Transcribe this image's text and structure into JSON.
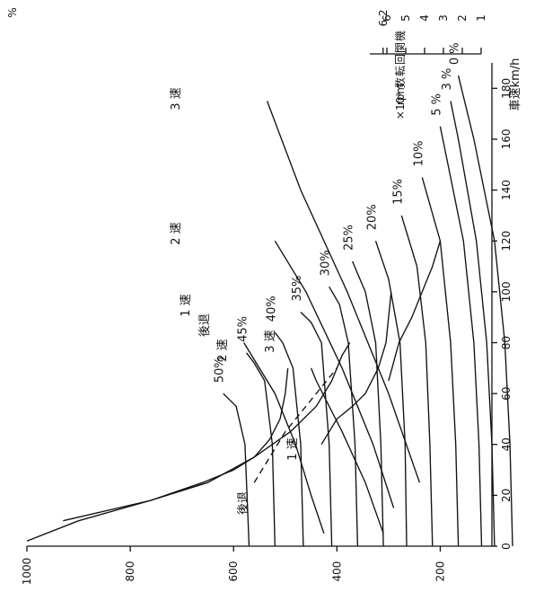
{
  "chart_data": {
    "type": "line",
    "title": "",
    "xlabel": "車速km/h",
    "ylabel": "",
    "ylabel_unit_top": "%",
    "rpm_axis_label": [
      "機",
      "関",
      "回",
      "転",
      "数",
      "rpm",
      "×10³"
    ],
    "xlim": [
      0,
      190
    ],
    "ylim": [
      100,
      1000
    ],
    "x_ticks": [
      0,
      20,
      40,
      60,
      80,
      100,
      120,
      140,
      160,
      180
    ],
    "y_ticks": [
      200,
      400,
      600,
      800,
      1000
    ],
    "rpm_ticks": [
      "1",
      "2",
      "3",
      "4",
      "5",
      "6",
      "6.2"
    ],
    "rpm_values": [
      1,
      2,
      3,
      4,
      5,
      6,
      6.2
    ],
    "gradient_labels": [
      "0 %",
      "3 %",
      "5 %",
      "10%",
      "15%",
      "20%",
      "25%",
      "30%",
      "35%",
      "40%",
      "45%",
      "50%"
    ],
    "gradient_series": [
      {
        "name": "0 %",
        "points": [
          [
            0,
            60
          ],
          [
            40,
            65
          ],
          [
            80,
            75
          ],
          [
            120,
            95
          ],
          [
            160,
            135
          ],
          [
            185,
            165
          ]
        ]
      },
      {
        "name": "3 %",
        "points": [
          [
            0,
            95
          ],
          [
            40,
            100
          ],
          [
            80,
            110
          ],
          [
            120,
            130
          ],
          [
            160,
            165
          ],
          [
            175,
            180
          ]
        ]
      },
      {
        "name": "5 %",
        "points": [
          [
            0,
            120
          ],
          [
            40,
            125
          ],
          [
            80,
            135
          ],
          [
            120,
            155
          ],
          [
            150,
            185
          ],
          [
            165,
            200
          ]
        ]
      },
      {
        "name": "10%",
        "points": [
          [
            0,
            165
          ],
          [
            40,
            170
          ],
          [
            80,
            180
          ],
          [
            120,
            200
          ],
          [
            145,
            235
          ]
        ]
      },
      {
        "name": "15%",
        "points": [
          [
            0,
            215
          ],
          [
            40,
            220
          ],
          [
            80,
            228
          ],
          [
            110,
            245
          ],
          [
            130,
            275
          ]
        ]
      },
      {
        "name": "20%",
        "points": [
          [
            0,
            265
          ],
          [
            40,
            268
          ],
          [
            80,
            278
          ],
          [
            105,
            300
          ],
          [
            120,
            325
          ]
        ]
      },
      {
        "name": "25%",
        "points": [
          [
            0,
            310
          ],
          [
            40,
            315
          ],
          [
            80,
            325
          ],
          [
            100,
            345
          ],
          [
            112,
            370
          ]
        ]
      },
      {
        "name": "30%",
        "points": [
          [
            0,
            360
          ],
          [
            40,
            365
          ],
          [
            80,
            378
          ],
          [
            95,
            395
          ],
          [
            102,
            415
          ]
        ]
      },
      {
        "name": "35%",
        "points": [
          [
            0,
            410
          ],
          [
            40,
            415
          ],
          [
            80,
            430
          ],
          [
            88,
            450
          ],
          [
            92,
            470
          ]
        ]
      },
      {
        "name": "40%",
        "points": [
          [
            0,
            465
          ],
          [
            40,
            470
          ],
          [
            70,
            485
          ],
          [
            80,
            505
          ],
          [
            84,
            520
          ]
        ]
      },
      {
        "name": "45%",
        "points": [
          [
            0,
            520
          ],
          [
            40,
            525
          ],
          [
            65,
            540
          ],
          [
            72,
            560
          ],
          [
            76,
            575
          ]
        ]
      },
      {
        "name": "50%",
        "points": [
          [
            0,
            570
          ],
          [
            40,
            578
          ],
          [
            55,
            595
          ],
          [
            58,
            610
          ],
          [
            60,
            620
          ]
        ]
      }
    ],
    "tractive_series": [
      {
        "name": "後退",
        "points": [
          [
            2,
            1000
          ],
          [
            10,
            900
          ],
          [
            18,
            760
          ],
          [
            25,
            660
          ],
          [
            30,
            600
          ],
          [
            35,
            560
          ],
          [
            42,
            530
          ],
          [
            50,
            510
          ],
          [
            60,
            500
          ],
          [
            70,
            495
          ]
        ]
      },
      {
        "name": "1 速",
        "points": [
          [
            10,
            930
          ],
          [
            18,
            760
          ],
          [
            25,
            650
          ],
          [
            35,
            560
          ],
          [
            45,
            490
          ],
          [
            55,
            440
          ],
          [
            65,
            410
          ],
          [
            75,
            390
          ],
          [
            80,
            375
          ]
        ]
      },
      {
        "name": "2 速",
        "points": [
          [
            40,
            430
          ],
          [
            50,
            400
          ],
          [
            55,
            370
          ],
          [
            60,
            345
          ],
          [
            70,
            320
          ],
          [
            80,
            305
          ],
          [
            90,
            300
          ],
          [
            100,
            295
          ]
        ]
      },
      {
        "name": "3 速",
        "points": [
          [
            65,
            300
          ],
          [
            80,
            280
          ],
          [
            90,
            255
          ],
          [
            100,
            235
          ],
          [
            110,
            215
          ],
          [
            120,
            200
          ]
        ]
      }
    ],
    "drag_series": [
      {
        "name": "1 速",
        "points": [
          [
            25,
            560
          ],
          [
            35,
            530
          ],
          [
            45,
            500
          ],
          [
            55,
            460
          ],
          [
            60,
            440
          ],
          [
            70,
            400
          ]
        ]
      }
    ],
    "rpm_series": [
      {
        "name": "後退",
        "points": [
          [
            5,
            425
          ],
          [
            20,
            450
          ],
          [
            40,
            480
          ],
          [
            60,
            520
          ],
          [
            80,
            580
          ]
        ]
      },
      {
        "name": "1 速",
        "points": [
          [
            5,
            310
          ],
          [
            25,
            345
          ],
          [
            45,
            390
          ],
          [
            65,
            440
          ],
          [
            70,
            450
          ]
        ]
      },
      {
        "name": "2 速",
        "points": [
          [
            15,
            290
          ],
          [
            40,
            330
          ],
          [
            70,
            390
          ],
          [
            100,
            460
          ],
          [
            120,
            520
          ]
        ]
      },
      {
        "name": "3 速",
        "points": [
          [
            25,
            240
          ],
          [
            60,
            300
          ],
          [
            100,
            380
          ],
          [
            140,
            470
          ],
          [
            175,
            535
          ]
        ]
      }
    ],
    "curve_labels": [
      "3 速",
      "2 速",
      "1 速",
      "後退",
      "2 速",
      "3 速",
      "1 速",
      "後退"
    ]
  }
}
